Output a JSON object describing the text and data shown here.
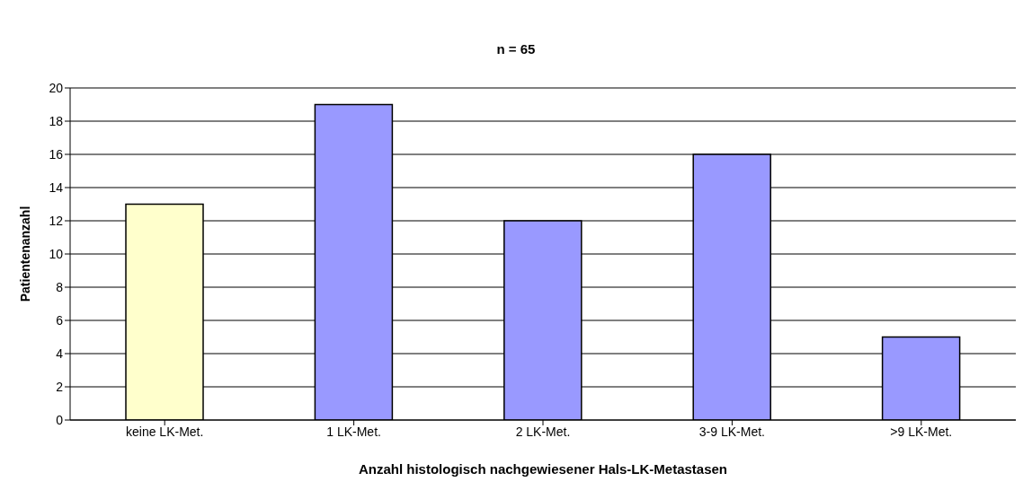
{
  "chart_data": {
    "type": "bar",
    "title": "n = 65",
    "xlabel": "Anzahl histologisch nachgewiesener Hals-LK-Metastasen",
    "ylabel": "Patientenanzahl",
    "categories": [
      "keine LK-Met.",
      "1 LK-Met.",
      "2 LK-Met.",
      "3-9 LK-Met.",
      ">9 LK-Met."
    ],
    "values": [
      13,
      19,
      12,
      16,
      5
    ],
    "colors": [
      "#ffffcc",
      "#9999ff",
      "#9999ff",
      "#9999ff",
      "#9999ff"
    ],
    "ylim": [
      0,
      20
    ],
    "yticks": [
      0,
      2,
      4,
      6,
      8,
      10,
      12,
      14,
      16,
      18,
      20
    ],
    "grid": "y"
  }
}
